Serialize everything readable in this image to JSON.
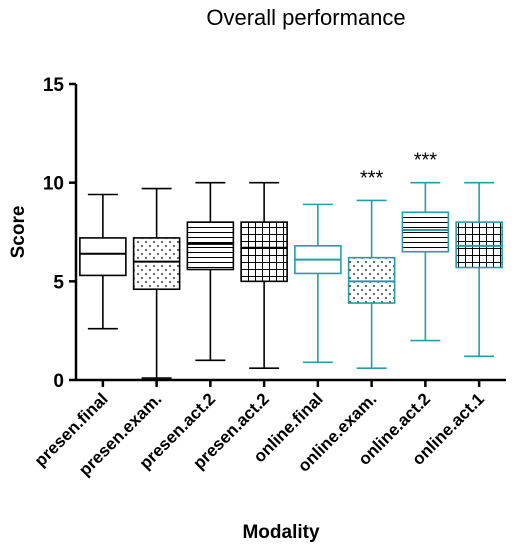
{
  "chart_data": {
    "type": "box",
    "title": "Overall performance",
    "xlabel": "Modality",
    "ylabel": "Score",
    "ylim": [
      0,
      15
    ],
    "yticks": [
      0,
      5,
      10,
      15
    ],
    "categories": [
      "presen.final",
      "presen.exam.",
      "presen.act.2",
      "presen.act.2",
      "online.final",
      "online.exam.",
      "online.act.2",
      "online.act.1"
    ],
    "boxes": [
      {
        "category": "presen.final",
        "min": 2.6,
        "q1": 5.3,
        "median": 6.4,
        "q3": 7.2,
        "max": 9.4,
        "pattern": "none",
        "color": "#000000",
        "annotation": ""
      },
      {
        "category": "presen.exam.",
        "min": 0.1,
        "q1": 4.6,
        "median": 6.0,
        "q3": 7.2,
        "max": 9.7,
        "pattern": "dots",
        "color": "#000000",
        "annotation": ""
      },
      {
        "category": "presen.act.2",
        "min": 1.0,
        "q1": 5.6,
        "median": 6.9,
        "q3": 8.0,
        "max": 10.0,
        "pattern": "horizontal-lines",
        "color": "#000000",
        "annotation": ""
      },
      {
        "category": "presen.act.2",
        "min": 0.6,
        "q1": 5.0,
        "median": 6.7,
        "q3": 8.0,
        "max": 10.0,
        "pattern": "grid",
        "color": "#000000",
        "annotation": ""
      },
      {
        "category": "online.final",
        "min": 0.9,
        "q1": 5.4,
        "median": 6.1,
        "q3": 6.8,
        "max": 8.9,
        "pattern": "none",
        "color": "#2a9ba6",
        "annotation": ""
      },
      {
        "category": "online.exam.",
        "min": 0.6,
        "q1": 3.9,
        "median": 5.0,
        "q3": 6.2,
        "max": 9.1,
        "pattern": "dots",
        "color": "#2a9ba6",
        "annotation": "***"
      },
      {
        "category": "online.act.2",
        "min": 2.0,
        "q1": 6.5,
        "median": 7.6,
        "q3": 8.5,
        "max": 10.0,
        "pattern": "horizontal-lines",
        "color": "#2a9ba6",
        "annotation": "***"
      },
      {
        "category": "online.act.1",
        "min": 1.2,
        "q1": 5.7,
        "median": 6.8,
        "q3": 8.0,
        "max": 10.0,
        "pattern": "grid",
        "color": "#2a9ba6",
        "annotation": ""
      }
    ],
    "grid": false,
    "legend": "none"
  }
}
